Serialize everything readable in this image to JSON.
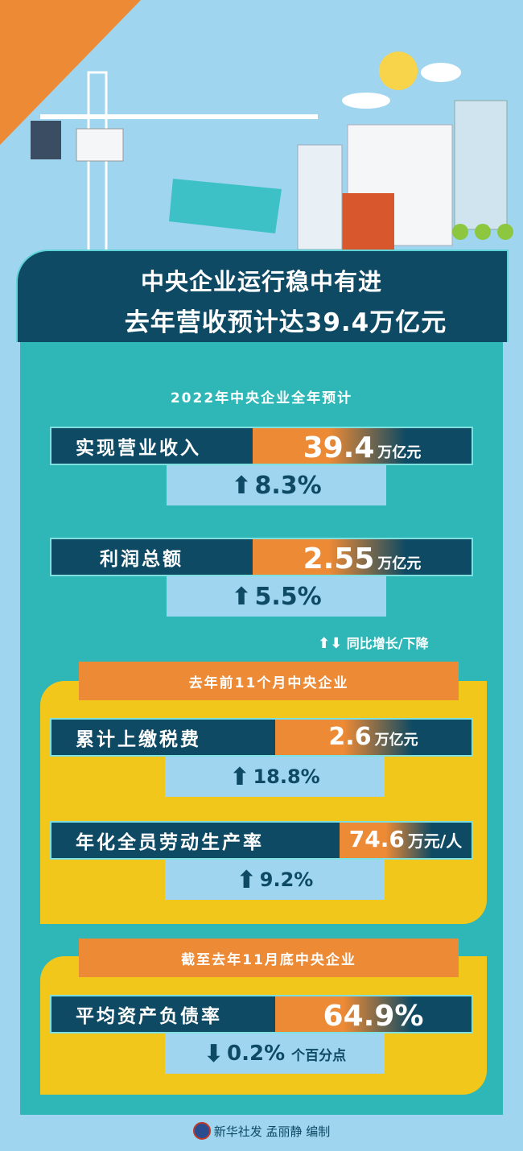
{
  "header": {
    "line1": "中央企业运行稳中有进",
    "line2": "去年营收预计达39.4万亿元"
  },
  "section_full_year": {
    "title": "2022年中央企业全年预计",
    "items": [
      {
        "label": "实现营业收入",
        "value": "39.4",
        "unit": "万亿元",
        "direction": "up",
        "change": "8.3%"
      },
      {
        "label": "利润总额",
        "value": "2.55",
        "unit": "万亿元",
        "direction": "up",
        "change": "5.5%"
      }
    ]
  },
  "legend": {
    "arrows": "⬆⬇",
    "text": "同比增长/下降"
  },
  "section_11_months": {
    "title": "去年前11个月中央企业",
    "items": [
      {
        "label": "累计上缴税费",
        "value": "2.6",
        "unit": "万亿元",
        "direction": "up",
        "change": "18.8%"
      },
      {
        "label": "年化全员劳动生产率",
        "value": "74.6",
        "unit": "万元/人",
        "direction": "up",
        "change": "9.2%"
      }
    ]
  },
  "section_november": {
    "title": "截至去年11月底中央企业",
    "items": [
      {
        "label": "平均资产负债率",
        "value": "64.9%",
        "unit": "",
        "direction": "down",
        "change": "0.2%",
        "change_suffix": "个百分点"
      }
    ]
  },
  "footer": {
    "credit": "新华社发 孟丽静 编制"
  },
  "icons": {
    "up": "⬆",
    "down": "⬇"
  },
  "colors": {
    "dark": "#0e4a63",
    "teal": "#2fb6b6",
    "orange": "#ec8a35",
    "yellow": "#f2c71b",
    "sky": "#9fd5ef"
  }
}
